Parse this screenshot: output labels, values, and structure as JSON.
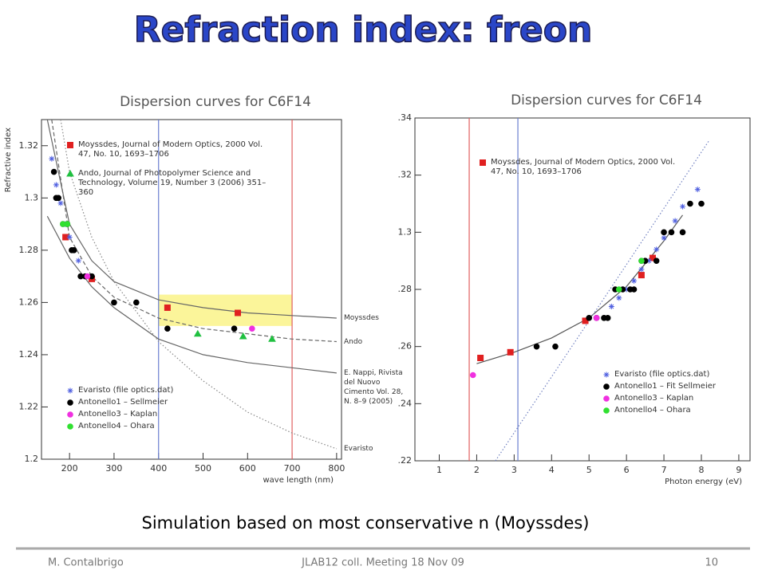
{
  "slide": {
    "title": "Refraction index: freon",
    "caption": "Simulation based on most conservative n (Moyssdes)",
    "footer": {
      "author": "M. Contalbrigo",
      "event": "JLAB12 coll. Meeting 18 Nov 09",
      "page": "10"
    }
  },
  "chart_data": [
    {
      "type": "scatter",
      "title": "Dispersion curves for C6F14",
      "y_label": "Refractive index",
      "x_label": "wave length (nm)",
      "xlim": [
        137,
        811
      ],
      "xticks": [
        200,
        300,
        400,
        500,
        600,
        700,
        800
      ],
      "ylim": [
        1.2,
        1.33
      ],
      "yticks": [
        1.2,
        1.22,
        1.24,
        1.26,
        1.28,
        1.3,
        1.32
      ],
      "vlines": [
        {
          "x": 400,
          "color": "#6a7fd0"
        },
        {
          "x": 700,
          "color": "#e06060"
        }
      ],
      "highlight": {
        "x": [
          400,
          700
        ],
        "y": [
          1.251,
          1.263
        ],
        "color": "#fbf59a"
      },
      "series": [
        {
          "name": "Moyssdes",
          "style": "solid",
          "color": "#666666",
          "x": [
            150,
            200,
            250,
            300,
            400,
            500,
            600,
            700,
            800
          ],
          "values": [
            1.33,
            1.29,
            1.276,
            1.268,
            1.261,
            1.258,
            1.256,
            1.255,
            1.254
          ]
        },
        {
          "name": "Ando",
          "style": "dashed",
          "color": "#666666",
          "x": [
            160,
            200,
            250,
            300,
            400,
            500,
            600,
            700,
            800
          ],
          "values": [
            1.33,
            1.285,
            1.27,
            1.262,
            1.254,
            1.25,
            1.248,
            1.246,
            1.245
          ]
        },
        {
          "name": "E. Nappi, Rivista del Nuovo Cimento Vol. 28, N. 8–9 (2005)",
          "style": "solid",
          "color": "#666666",
          "x": [
            150,
            200,
            250,
            300,
            400,
            500,
            600,
            700,
            800
          ],
          "values": [
            1.293,
            1.277,
            1.266,
            1.258,
            1.246,
            1.24,
            1.237,
            1.235,
            1.233
          ]
        },
        {
          "name": "Evaristo",
          "style": "dotted",
          "color": "#888888",
          "x": [
            180,
            200,
            250,
            300,
            400,
            500,
            600,
            700,
            800
          ],
          "values": [
            1.33,
            1.31,
            1.285,
            1.268,
            1.245,
            1.23,
            1.218,
            1.21,
            1.204
          ]
        },
        {
          "name": "Moyssdes, Journal of Modern Optics, 2000 Vol. 47, No. 10, 1693–1706",
          "marker": "square",
          "color": "#e02020",
          "x": [
            191,
            250,
            420,
            578
          ],
          "values": [
            1.285,
            1.269,
            1.258,
            1.256
          ]
        },
        {
          "name": "Ando, Journal of Photopolymer Science and Technology, Volume 19, Number 3 (2006) 351–360",
          "marker": "triangle",
          "color": "#20c040",
          "x": [
            488,
            590,
            655
          ],
          "values": [
            1.248,
            1.247,
            1.246
          ]
        },
        {
          "name": "Evaristo (file optics.dat)",
          "marker": "star",
          "color": "#5060e0",
          "x": [
            160,
            165,
            170,
            180,
            190,
            200,
            210,
            220
          ],
          "values": [
            1.315,
            1.31,
            1.305,
            1.298,
            1.29,
            1.285,
            1.28,
            1.276
          ]
        },
        {
          "name": "Antonello1 – Sellmeier",
          "marker": "circle",
          "color": "#000000",
          "x": [
            165,
            170,
            175,
            195,
            205,
            210,
            225,
            235,
            250,
            300,
            350,
            420,
            570
          ],
          "values": [
            1.31,
            1.3,
            1.3,
            1.29,
            1.28,
            1.28,
            1.27,
            1.27,
            1.27,
            1.26,
            1.26,
            1.25,
            1.25
          ]
        },
        {
          "name": "Antonello3 – Kaplan",
          "marker": "circle",
          "color": "#f030e0",
          "x": [
            185,
            240,
            610
          ],
          "values": [
            1.29,
            1.27,
            1.25
          ]
        },
        {
          "name": "Antonello4 – Ohara",
          "marker": "circle",
          "color": "#30e030",
          "x": [
            185,
            195
          ],
          "values": [
            1.29,
            1.29
          ]
        }
      ]
    },
    {
      "type": "scatter",
      "title": "Dispersion curves for C6F14",
      "x_label": "Photon energy (eV)",
      "xlim": [
        0.35,
        9.3
      ],
      "xticks": [
        1,
        2,
        3,
        4,
        5,
        6,
        7,
        8,
        9
      ],
      "ylim": [
        1.22,
        1.34
      ],
      "yticks": [
        {
          "value": 1.22,
          "label": ".22"
        },
        {
          "value": 1.24,
          "label": ".24"
        },
        {
          "value": 1.26,
          "label": ".26"
        },
        {
          "value": 1.28,
          "label": ".28"
        },
        1.3,
        {
          "value": 1.32,
          "label": ".32"
        },
        {
          "value": 1.34,
          "label": ".34"
        }
      ],
      "vlines": [
        {
          "x": 1.8,
          "color": "#e06060"
        },
        {
          "x": 3.1,
          "color": "#6a7fd0"
        }
      ],
      "series": [
        {
          "style": "solid",
          "color": "#555555",
          "x": [
            2,
            3,
            4,
            5,
            6,
            7,
            7.5
          ],
          "values": [
            1.254,
            1.258,
            1.263,
            1.27,
            1.281,
            1.297,
            1.306
          ]
        },
        {
          "style": "dotted",
          "color": "#7080c0",
          "x": [
            2.5,
            5,
            8.2
          ],
          "values": [
            1.22,
            1.269,
            1.332
          ]
        },
        {
          "name": "Moyssdes, Journal of Modern Optics, 2000 Vol. 47, No. 10, 1693–1706",
          "marker": "square",
          "color": "#e02020",
          "x": [
            2.1,
            2.9,
            4.9,
            6.4,
            6.7
          ],
          "values": [
            1.256,
            1.258,
            1.269,
            1.285,
            1.291
          ]
        },
        {
          "name": "Evaristo (file optics.dat)",
          "marker": "star",
          "color": "#5060e0",
          "x": [
            5.6,
            5.8,
            6,
            6.2,
            6.4,
            6.6,
            6.8,
            7,
            7.3,
            7.5,
            7.9
          ],
          "values": [
            1.274,
            1.277,
            1.28,
            1.283,
            1.287,
            1.29,
            1.294,
            1.298,
            1.304,
            1.309,
            1.315
          ]
        },
        {
          "name": "Antonello1 – Fit Sellmeier",
          "marker": "circle",
          "color": "#000000",
          "x": [
            3.6,
            4.1,
            5,
            5.2,
            5.4,
            5.5,
            5.7,
            5.9,
            6.1,
            6.2,
            6.5,
            6.8,
            7,
            7.2,
            7.5,
            7.7,
            8
          ],
          "values": [
            1.26,
            1.26,
            1.27,
            1.27,
            1.27,
            1.27,
            1.28,
            1.28,
            1.28,
            1.28,
            1.29,
            1.29,
            1.3,
            1.3,
            1.3,
            1.31,
            1.31
          ]
        },
        {
          "name": "Antonello3 – Kaplan",
          "marker": "circle",
          "color": "#f030e0",
          "x": [
            1.9,
            5.2,
            6.4
          ],
          "values": [
            1.25,
            1.27,
            1.29
          ]
        },
        {
          "name": "Antonello4 – Ohara",
          "marker": "circle",
          "color": "#30e030",
          "x": [
            5.8,
            6.4
          ],
          "values": [
            1.28,
            1.29
          ]
        }
      ]
    }
  ]
}
